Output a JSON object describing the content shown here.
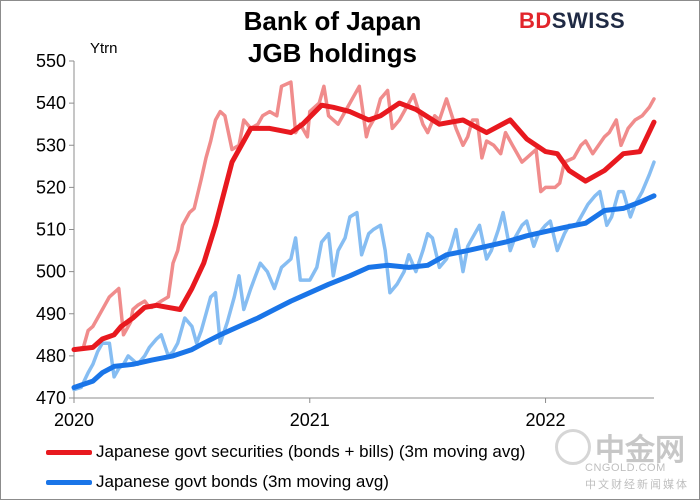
{
  "brand": {
    "part1": "BD",
    "part2": "SWISS"
  },
  "chart_data": {
    "type": "line",
    "title_line1": "Bank of Japan",
    "title_line2": "JGB holdings",
    "unit_label": "Ytrn",
    "xlim": [
      2020.0,
      2022.46
    ],
    "ylim": [
      470,
      550
    ],
    "y_ticks": [
      470,
      480,
      490,
      500,
      510,
      520,
      530,
      540,
      550
    ],
    "x_ticks": [
      {
        "value": 2020,
        "label": "2020"
      },
      {
        "value": 2021,
        "label": "2021"
      },
      {
        "value": 2022,
        "label": "2022"
      }
    ],
    "grid": false,
    "legend_position": "bottom",
    "series": [
      {
        "name": "Japanese govt securities (bonds + bills) (3m moving avg)",
        "color": "#e8191f",
        "x": [
          2020.0,
          2020.08,
          2020.12,
          2020.17,
          2020.2,
          2020.25,
          2020.3,
          2020.35,
          2020.4,
          2020.45,
          2020.5,
          2020.55,
          2020.6,
          2020.67,
          2020.75,
          2020.83,
          2020.92,
          2020.97,
          2021.05,
          2021.1,
          2021.17,
          2021.25,
          2021.3,
          2021.38,
          2021.45,
          2021.55,
          2021.65,
          2021.75,
          2021.85,
          2021.92,
          2022.0,
          2022.05,
          2022.1,
          2022.17,
          2022.25,
          2022.33,
          2022.4,
          2022.46
        ],
        "values": [
          481.5,
          482,
          484,
          485,
          487,
          489,
          491.5,
          492,
          491.5,
          491,
          496,
          502,
          511,
          526,
          534,
          534,
          533,
          535,
          539.5,
          539,
          538,
          536,
          537,
          540,
          538.5,
          535,
          536,
          533,
          536,
          531.5,
          528.5,
          528,
          524,
          521.5,
          524,
          528,
          528.5,
          535.5
        ]
      },
      {
        "name": "Japanese govt bonds (3m moving avg)",
        "color": "#1a75e8",
        "x": [
          2020.0,
          2020.08,
          2020.12,
          2020.17,
          2020.25,
          2020.33,
          2020.42,
          2020.5,
          2020.55,
          2020.62,
          2020.7,
          2020.78,
          2020.85,
          2020.92,
          2021.0,
          2021.08,
          2021.17,
          2021.25,
          2021.33,
          2021.42,
          2021.5,
          2021.58,
          2021.67,
          2021.75,
          2021.83,
          2021.92,
          2022.0,
          2022.08,
          2022.17,
          2022.25,
          2022.33,
          2022.4,
          2022.46
        ],
        "values": [
          472.5,
          474,
          476,
          477.5,
          478,
          479,
          480,
          481.5,
          483,
          485,
          487,
          489,
          491,
          493,
          495,
          497,
          499,
          501,
          501.5,
          501,
          501.5,
          504,
          505,
          506,
          507,
          508.5,
          509.5,
          510.5,
          511.5,
          514.5,
          515,
          516.5,
          518
        ]
      },
      {
        "name": "",
        "color": "#f08c8c",
        "x": [
          2020.0,
          2020.04,
          2020.06,
          2020.08,
          2020.1,
          2020.13,
          2020.15,
          2020.19,
          2020.21,
          2020.24,
          2020.25,
          2020.27,
          2020.3,
          2020.32,
          2020.33,
          2020.37,
          2020.4,
          2020.42,
          2020.44,
          2020.46,
          2020.49,
          2020.51,
          2020.54,
          2020.56,
          2020.58,
          2020.6,
          2020.62,
          2020.64,
          2020.67,
          2020.7,
          2020.72,
          2020.75,
          2020.78,
          2020.8,
          2020.83,
          2020.86,
          2020.88,
          2020.92,
          2020.94,
          2020.96,
          2020.99,
          2021.0,
          2021.04,
          2021.06,
          2021.08,
          2021.12,
          2021.15,
          2021.17,
          2021.21,
          2021.24,
          2021.25,
          2021.28,
          2021.3,
          2021.33,
          2021.35,
          2021.38,
          2021.42,
          2021.44,
          2021.48,
          2021.5,
          2021.53,
          2021.55,
          2021.58,
          2021.62,
          2021.65,
          2021.67,
          2021.69,
          2021.71,
          2021.73,
          2021.75,
          2021.78,
          2021.81,
          2021.83,
          2021.86,
          2021.88,
          2021.9,
          2021.92,
          2021.94,
          2021.96,
          2021.98,
          2022.0,
          2022.04,
          2022.06,
          2022.08,
          2022.12,
          2022.15,
          2022.17,
          2022.2,
          2022.25,
          2022.27,
          2022.3,
          2022.32,
          2022.35,
          2022.38,
          2022.41,
          2022.44,
          2022.46
        ],
        "values": [
          481.5,
          482,
          486,
          487,
          489,
          492,
          494,
          496,
          485,
          488,
          491,
          492,
          493,
          491.5,
          491.5,
          493,
          494,
          502,
          505,
          511,
          514,
          515,
          522,
          527,
          531,
          536,
          538,
          537,
          529,
          530,
          536,
          534,
          535,
          537,
          538,
          537,
          544,
          545,
          533,
          535,
          532,
          538,
          540,
          544,
          537,
          535,
          538,
          540,
          544,
          532,
          534,
          537,
          541,
          543,
          534,
          536,
          540,
          542,
          535,
          533,
          537,
          536,
          541,
          534,
          530,
          532,
          536,
          536,
          527,
          531,
          530,
          528,
          533,
          530,
          528,
          526,
          527,
          528,
          529,
          519,
          520,
          520,
          521,
          526,
          527,
          530,
          531,
          528,
          532,
          533,
          536,
          530,
          534,
          536,
          537,
          539,
          541
        ]
      },
      {
        "name": "",
        "color": "#86bdf2",
        "x": [
          2020.0,
          2020.03,
          2020.06,
          2020.08,
          2020.1,
          2020.12,
          2020.15,
          2020.17,
          2020.19,
          2020.21,
          2020.23,
          2020.25,
          2020.27,
          2020.3,
          2020.32,
          2020.35,
          2020.37,
          2020.4,
          2020.42,
          2020.44,
          2020.47,
          2020.5,
          2020.52,
          2020.54,
          2020.56,
          2020.58,
          2020.6,
          2020.62,
          2020.65,
          2020.68,
          2020.7,
          2020.72,
          2020.75,
          2020.77,
          2020.79,
          2020.82,
          2020.85,
          2020.88,
          2020.92,
          2020.94,
          2020.96,
          2021.0,
          2021.03,
          2021.05,
          2021.08,
          2021.1,
          2021.12,
          2021.15,
          2021.17,
          2021.2,
          2021.22,
          2021.25,
          2021.27,
          2021.3,
          2021.32,
          2021.34,
          2021.37,
          2021.4,
          2021.42,
          2021.45,
          2021.48,
          2021.5,
          2021.52,
          2021.55,
          2021.58,
          2021.6,
          2021.62,
          2021.65,
          2021.67,
          2021.7,
          2021.72,
          2021.75,
          2021.77,
          2021.8,
          2021.82,
          2021.85,
          2021.87,
          2021.9,
          2021.92,
          2021.95,
          2021.97,
          2022.0,
          2022.02,
          2022.05,
          2022.08,
          2022.1,
          2022.13,
          2022.16,
          2022.18,
          2022.21,
          2022.23,
          2022.26,
          2022.28,
          2022.31,
          2022.33,
          2022.36,
          2022.38,
          2022.41,
          2022.44,
          2022.46
        ],
        "values": [
          472,
          472.5,
          476,
          478,
          481,
          483,
          483,
          475,
          477,
          478,
          480,
          479,
          478,
          480,
          482,
          484,
          485,
          480,
          481,
          483,
          489,
          487,
          483,
          486,
          490,
          494,
          495,
          483,
          488,
          494,
          499,
          491,
          496,
          499,
          502,
          500,
          496,
          501,
          503,
          508,
          498,
          498,
          501,
          507,
          509,
          499,
          505,
          508,
          513,
          514,
          504,
          509,
          510,
          511,
          505,
          495,
          497,
          500,
          504,
          500,
          505,
          509,
          508,
          501,
          503,
          506,
          510,
          500,
          506,
          509,
          511,
          503,
          505,
          510,
          514,
          505,
          508,
          511,
          512,
          506,
          509,
          511,
          512,
          505,
          509,
          511,
          511,
          514,
          516,
          518,
          519,
          511,
          513,
          519,
          519,
          513,
          516,
          519,
          523,
          526
        ]
      }
    ]
  },
  "watermark": {
    "cn": "中金网",
    "url": "CNGOLD.COM",
    "sub": "中文财经新闻媒体"
  }
}
